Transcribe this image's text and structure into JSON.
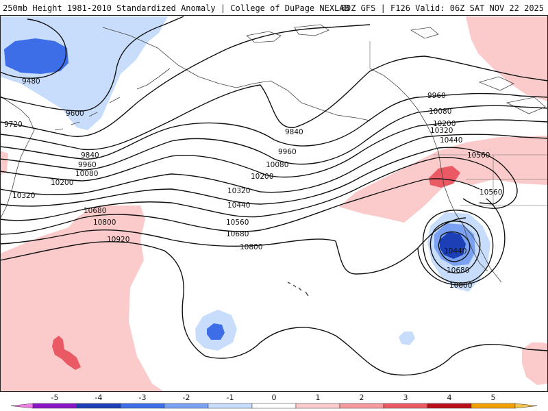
{
  "header": {
    "title_left": "250mb Height 1981-2010 Standardized Anomaly | College of DuPage NEXLAB",
    "title_right": "00Z GFS | F126 Valid: 06Z SAT NOV 22 2025"
  },
  "map": {
    "contour_labels": [
      "9480",
      "9600",
      "9720",
      "9840",
      "9960",
      "10080",
      "10200",
      "10320",
      "10680",
      "10800",
      "10920",
      "9840",
      "9960",
      "10080",
      "10200",
      "10320",
      "10440",
      "10560",
      "10680",
      "10800",
      "9960",
      "10080",
      "10200",
      "10320",
      "10440",
      "10560",
      "10560",
      "10440",
      "10680",
      "10800"
    ]
  },
  "legend": {
    "ticks": [
      "-5",
      "-4",
      "-3",
      "-2",
      "-1",
      "0",
      "1",
      "2",
      "3",
      "4",
      "5"
    ],
    "colors": [
      "#f27ee8",
      "#8a16c6",
      "#1d3fb5",
      "#3d6ee8",
      "#7aa1f2",
      "#c7ddfb",
      "#ffffff",
      "#fbcbcb",
      "#f59a9e",
      "#ea5a64",
      "#b80f1a",
      "#f2a000",
      "#f7c34a"
    ]
  }
}
